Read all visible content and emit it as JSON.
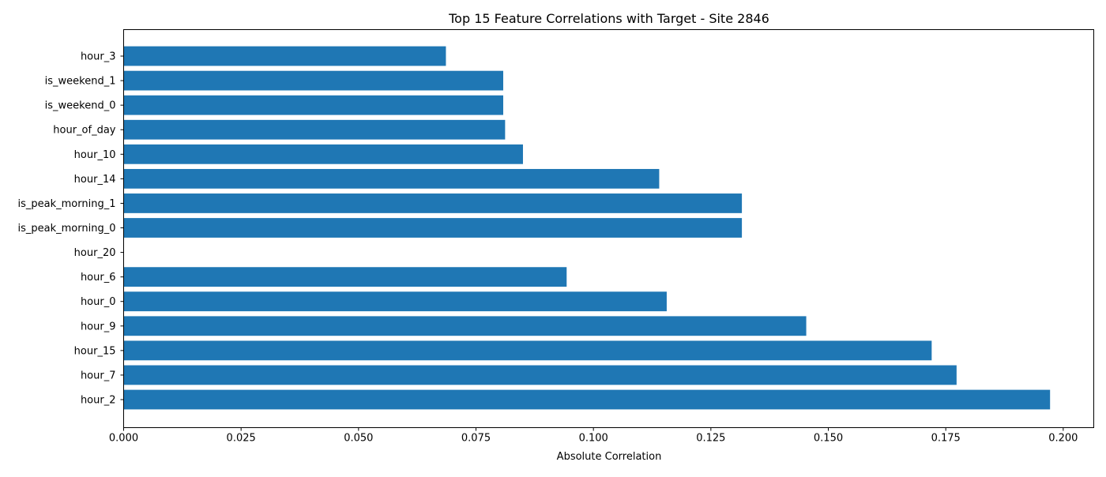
{
  "chart_data": {
    "type": "bar",
    "orientation": "horizontal",
    "title": "Top 15 Feature Correlations with Target - Site 2846",
    "xlabel": "Absolute Correlation",
    "ylabel": "",
    "xlim": [
      0,
      0.2065
    ],
    "xticks": [
      0.0,
      0.025,
      0.05,
      0.075,
      0.1,
      0.125,
      0.15,
      0.175,
      0.2
    ],
    "xtick_labels": [
      "0.000",
      "0.025",
      "0.050",
      "0.075",
      "0.100",
      "0.125",
      "0.150",
      "0.175",
      "0.200"
    ],
    "grid": false,
    "bar_color": "#1f77b4",
    "categories": [
      "hour_2",
      "hour_7",
      "hour_15",
      "hour_9",
      "hour_0",
      "hour_6",
      "hour_20",
      "is_peak_morning_0",
      "is_peak_morning_1",
      "hour_14",
      "hour_10",
      "hour_of_day",
      "is_weekend_0",
      "is_weekend_1",
      "hour_3"
    ],
    "values": [
      0.1972,
      0.1773,
      0.172,
      0.1453,
      0.1156,
      0.0943,
      null,
      0.1316,
      0.1316,
      0.114,
      0.085,
      0.0812,
      0.0808,
      0.0808,
      0.0686
    ]
  }
}
